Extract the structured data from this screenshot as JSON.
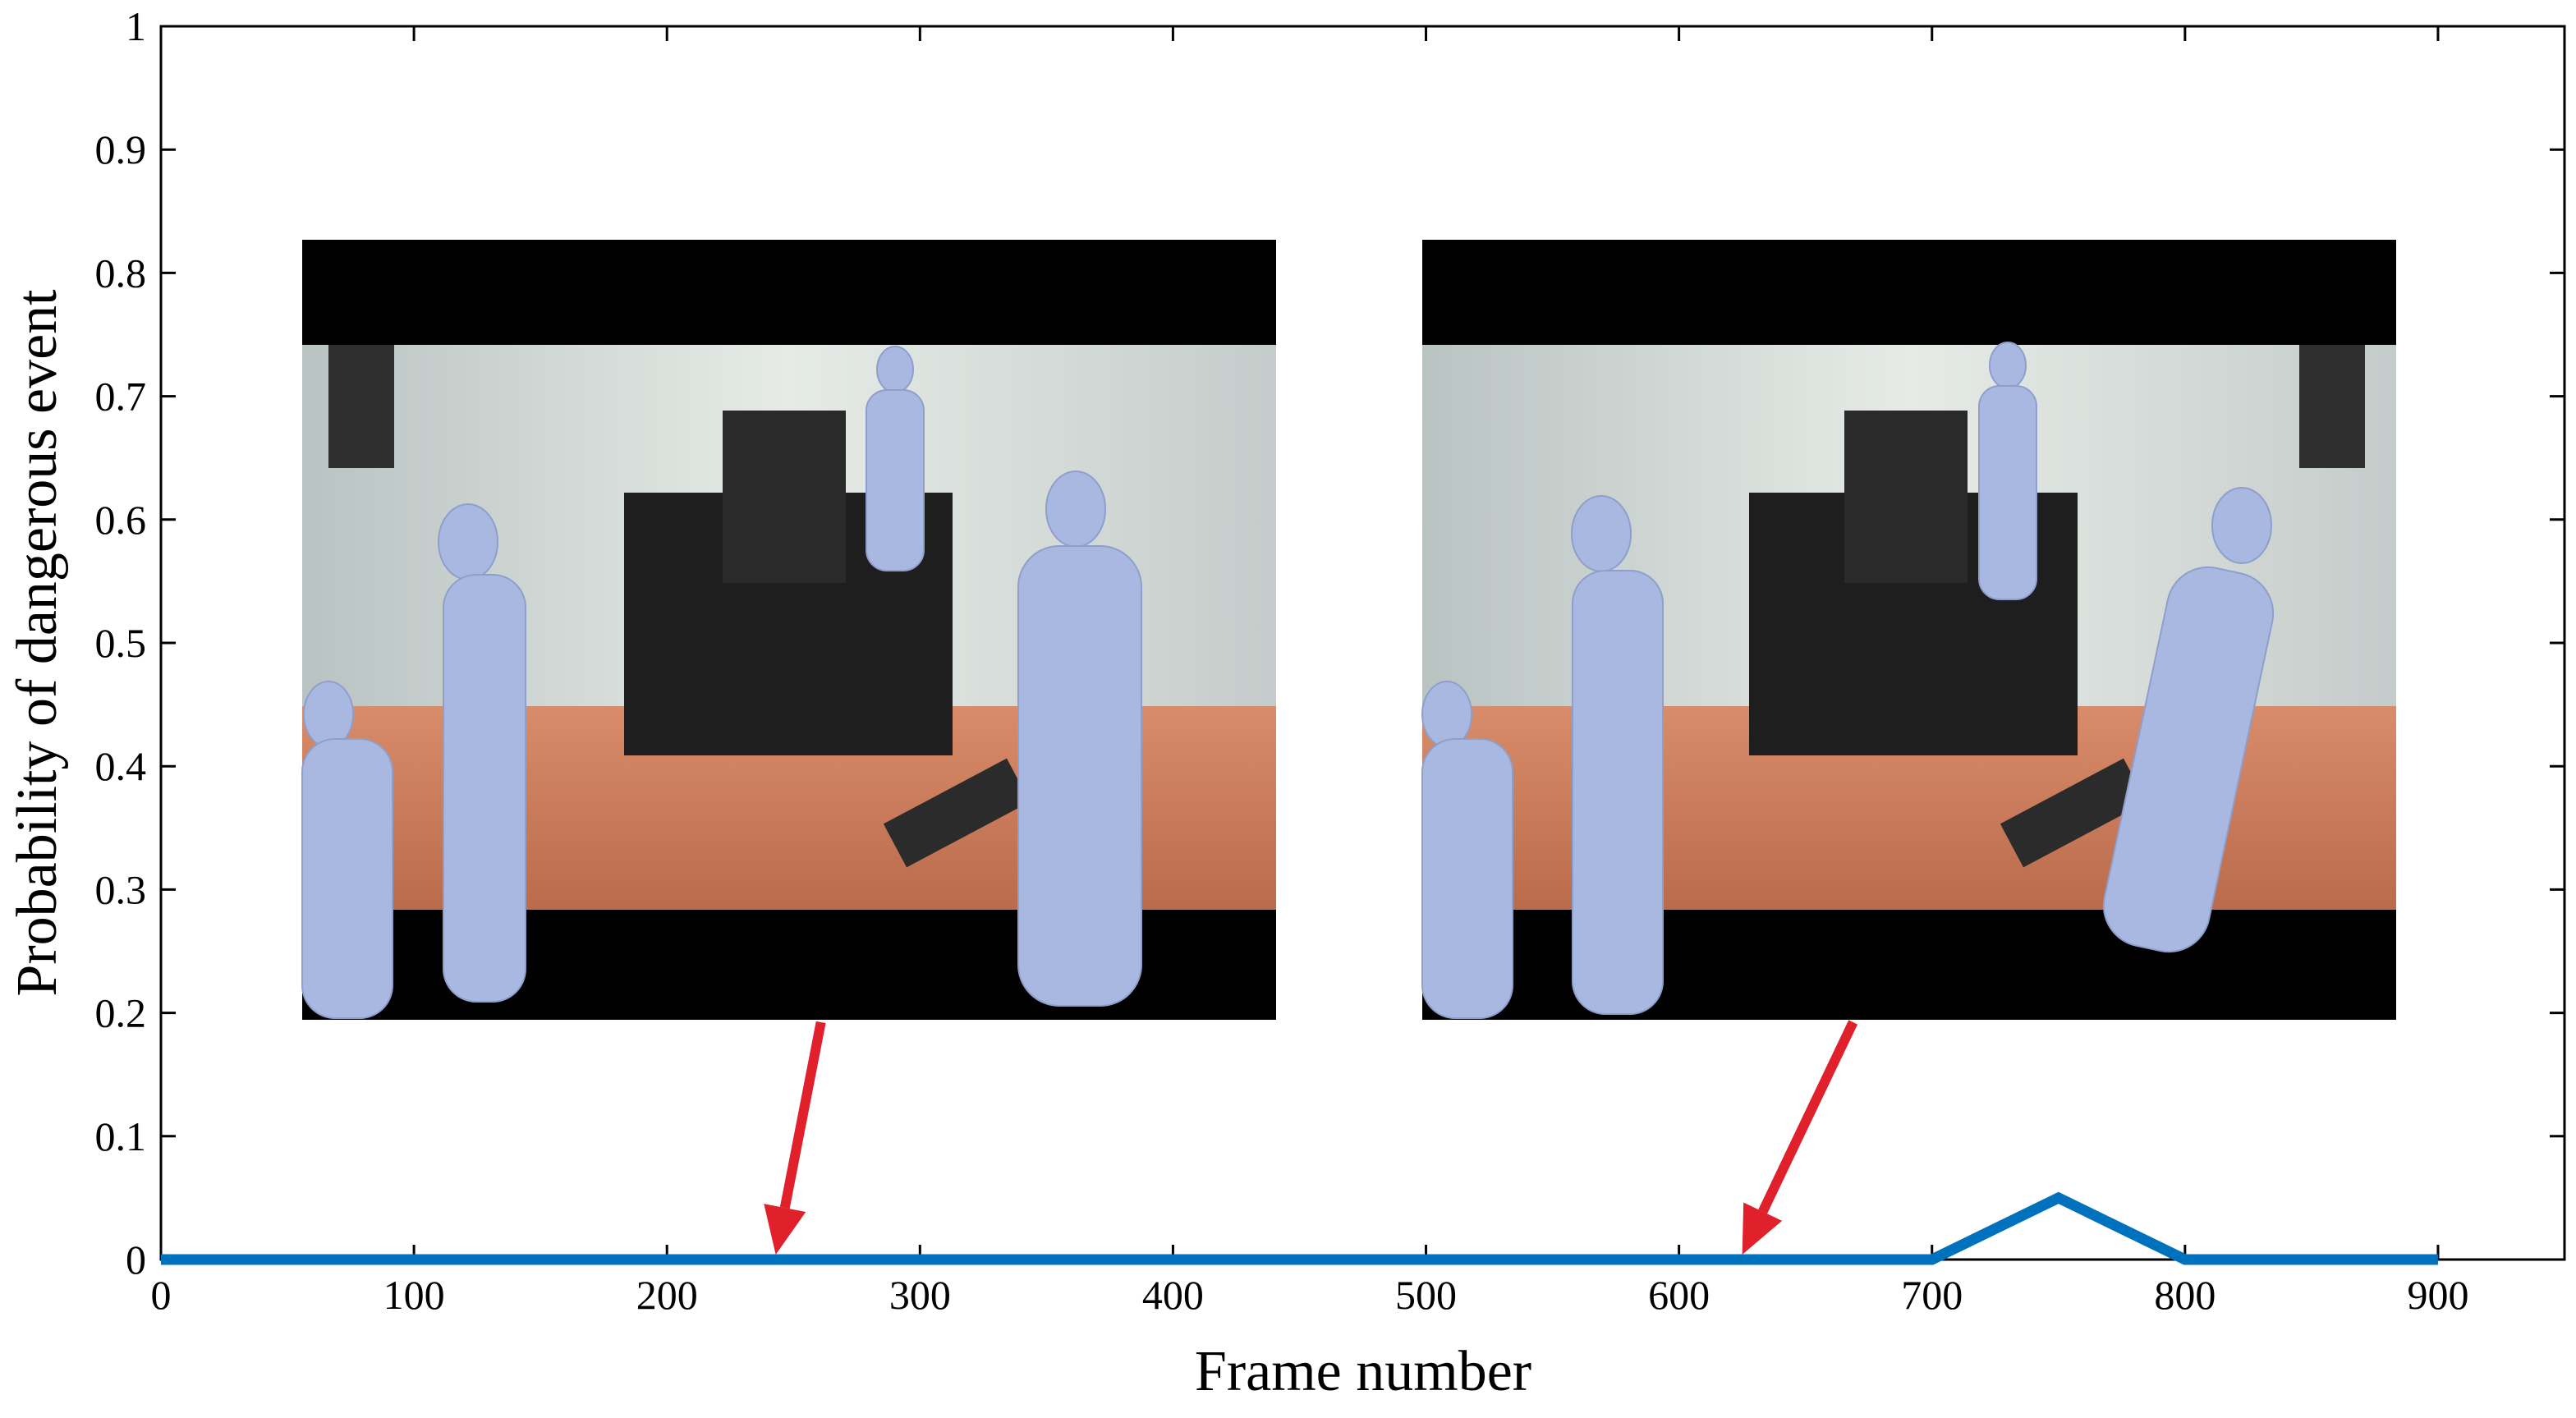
{
  "chart_data": {
    "type": "line",
    "title": "",
    "xlabel": "Frame number",
    "ylabel": "Probability of dangerous event",
    "xlim": [
      0,
      950
    ],
    "ylim": [
      0,
      1
    ],
    "xticks": [
      0,
      100,
      200,
      300,
      400,
      500,
      600,
      700,
      800,
      900
    ],
    "xtick_labels": [
      "0",
      "100",
      "200",
      "300",
      "400",
      "500",
      "600",
      "700",
      "800",
      "900"
    ],
    "yticks": [
      0,
      0.1,
      0.2,
      0.3,
      0.4,
      0.5,
      0.6,
      0.7,
      0.8,
      0.9,
      1
    ],
    "ytick_labels": [
      "0",
      "0.1",
      "0.2",
      "0.3",
      "0.4",
      "0.5",
      "0.6",
      "0.7",
      "0.8",
      "0.9",
      "1"
    ],
    "grid": false,
    "legend": "none",
    "series": [
      {
        "color": "#0072BD",
        "x": [
          0,
          700,
          750,
          800,
          900
        ],
        "y": [
          0,
          0,
          0.05,
          0,
          0
        ]
      }
    ],
    "annotations": [
      {
        "kind": "arrow",
        "target_frame": 243,
        "target_value": 0,
        "color": "#E0202A"
      },
      {
        "kind": "arrow",
        "target_frame": 625,
        "target_value": 0,
        "color": "#E0202A"
      }
    ],
    "inset_images": [
      {
        "description": "video frame with fitted 3D human body meshes",
        "near_frame": 243
      },
      {
        "description": "video frame with fitted 3D human body meshes",
        "near_frame": 625
      }
    ]
  }
}
